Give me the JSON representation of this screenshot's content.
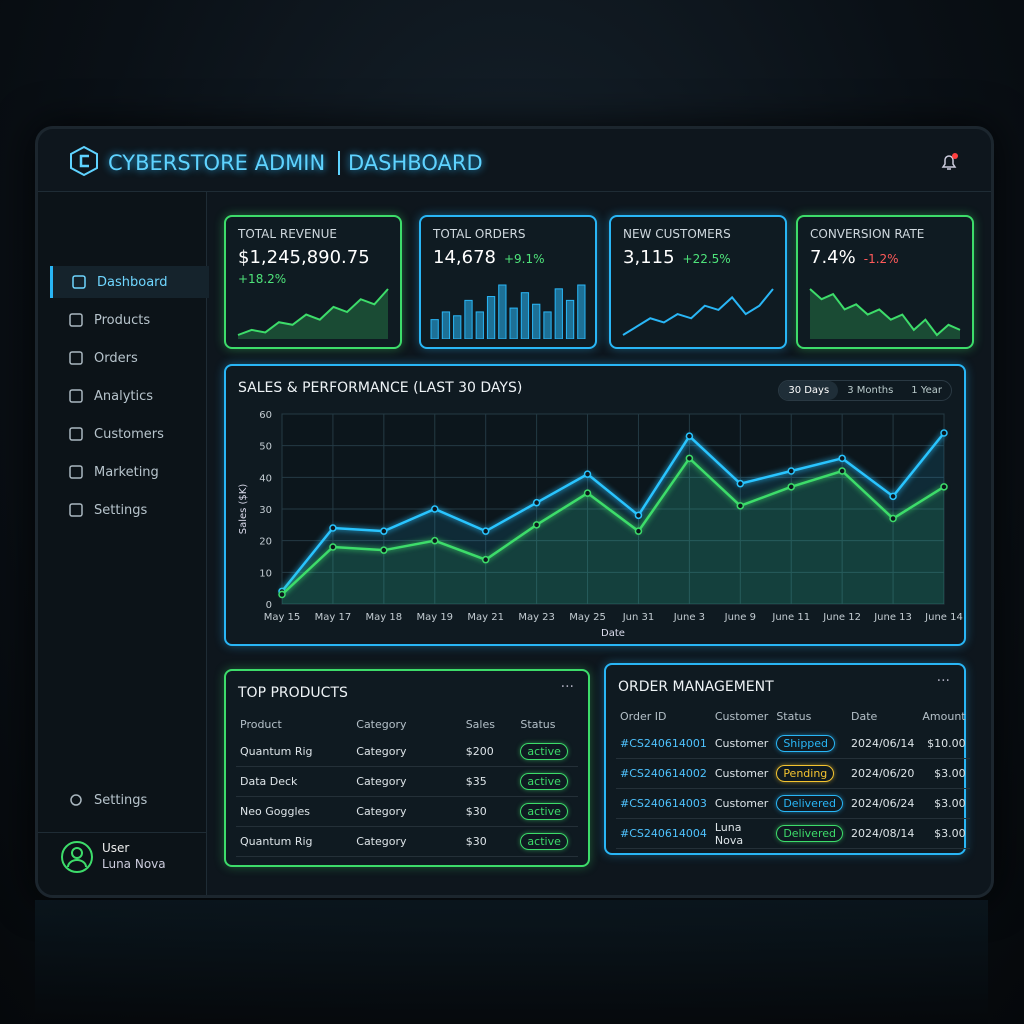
{
  "header": {
    "title": "CYBERSTORE ADMIN",
    "subtitle": "DASHBOARD"
  },
  "sidebar": {
    "nav": [
      "Dashboard",
      "Products",
      "Orders",
      "Analytics",
      "Customers",
      "Marketing",
      "Settings"
    ],
    "footer_link": "Settings",
    "user": {
      "role": "User",
      "name": "Luna Nova"
    }
  },
  "kpis": [
    {
      "title": "TOTAL REVENUE",
      "value": "$1,245,890.75",
      "delta": "+18.2%",
      "delta_color": "#4ee37a",
      "border": "#3ddc6a",
      "chart": {
        "type": "area",
        "color": "#3ddc6a",
        "values": [
          4,
          6,
          5,
          9,
          8,
          12,
          10,
          15,
          13,
          18,
          16,
          22
        ]
      }
    },
    {
      "title": "TOTAL ORDERS",
      "value": "14,678",
      "delta": "+9.1%",
      "delta_color": "#4ee37a",
      "border": "#29b6f6",
      "chart": {
        "type": "bar",
        "color": "#29b6f6",
        "values": [
          4,
          6,
          5,
          9,
          6,
          10,
          13,
          7,
          11,
          8,
          6,
          12,
          9,
          13
        ]
      }
    },
    {
      "title": "NEW CUSTOMERS",
      "value": "3,115",
      "delta": "+22.5%",
      "delta_color": "#4ee37a",
      "border": "#29b6f6",
      "chart": {
        "type": "line",
        "color": "#29b6f6",
        "values": [
          3,
          5,
          7,
          6,
          8,
          7,
          10,
          9,
          12,
          8,
          10,
          14
        ]
      }
    },
    {
      "title": "CONVERSION RATE",
      "value": "7.4%",
      "delta": "-1.2%",
      "delta_color": "#ff5a5a",
      "border": "#3ddc6a",
      "chart": {
        "type": "area",
        "color": "#3ddc6a",
        "values": [
          14,
          12,
          13,
          10,
          11,
          9,
          10,
          8,
          9,
          6,
          8,
          5,
          7,
          6
        ]
      }
    }
  ],
  "chart_data": {
    "type": "line",
    "title": "SALES & PERFORMANCE (LAST 30 DAYS)",
    "range_options": [
      "30 Days",
      "3 Months",
      "1 Year"
    ],
    "x_label": "Date",
    "y_label": "Sales ($K)",
    "categories": [
      "May 15",
      "May 17",
      "May 18",
      "May 19",
      "May 21",
      "May 23",
      "May 25",
      "Jun 31",
      "June 3",
      "June 9",
      "June 11",
      "June 12",
      "June 13",
      "June 14"
    ],
    "series": [
      {
        "color": "#29c4ff",
        "values": [
          4,
          24,
          23,
          30,
          23,
          32,
          41,
          28,
          53,
          38,
          42,
          46,
          34,
          54
        ]
      },
      {
        "color": "#3ddc6a",
        "values": [
          3,
          18,
          17,
          20,
          14,
          25,
          35,
          23,
          46,
          31,
          37,
          42,
          27,
          37
        ]
      }
    ],
    "ylim": [
      0,
      60
    ],
    "yticks": [
      0,
      10,
      20,
      30,
      40,
      50,
      60
    ],
    "grid": true
  },
  "top_products": {
    "title": "TOP PRODUCTS",
    "menu": "···",
    "columns": [
      "Product",
      "Category",
      "Sales",
      "Status"
    ],
    "rows": [
      [
        "Quantum Rig",
        "Category",
        "$200",
        "active"
      ],
      [
        "Data Deck",
        "Category",
        "$35",
        "active"
      ],
      [
        "Neo Goggles",
        "Category",
        "$30",
        "active"
      ],
      [
        "Quantum Rig",
        "Category",
        "$30",
        "active"
      ]
    ],
    "status_colors": [
      "#3ddc6a",
      "#3ddc6a",
      "#3ddc6a",
      "#3ddc6a"
    ]
  },
  "orders": {
    "title": "ORDER MANAGEMENT",
    "menu": "···",
    "columns": [
      "Order ID",
      "Customer",
      "Status",
      "Date",
      "Amount"
    ],
    "rows": [
      [
        "#CS240614001",
        "Customer",
        "Shipped",
        "2024/06/14",
        "$10.00"
      ],
      [
        "#CS240614002",
        "Customer",
        "Pending",
        "2024/06/20",
        "$3.00"
      ],
      [
        "#CS240614003",
        "Customer",
        "Delivered",
        "2024/06/24",
        "$3.00"
      ],
      [
        "#CS240614004",
        "Luna Nova",
        "Delivered",
        "2024/08/14",
        "$3.00"
      ]
    ],
    "status_colors": [
      "#29b6f6",
      "#f4c430",
      "#29b6f6",
      "#3ddc6a"
    ]
  }
}
